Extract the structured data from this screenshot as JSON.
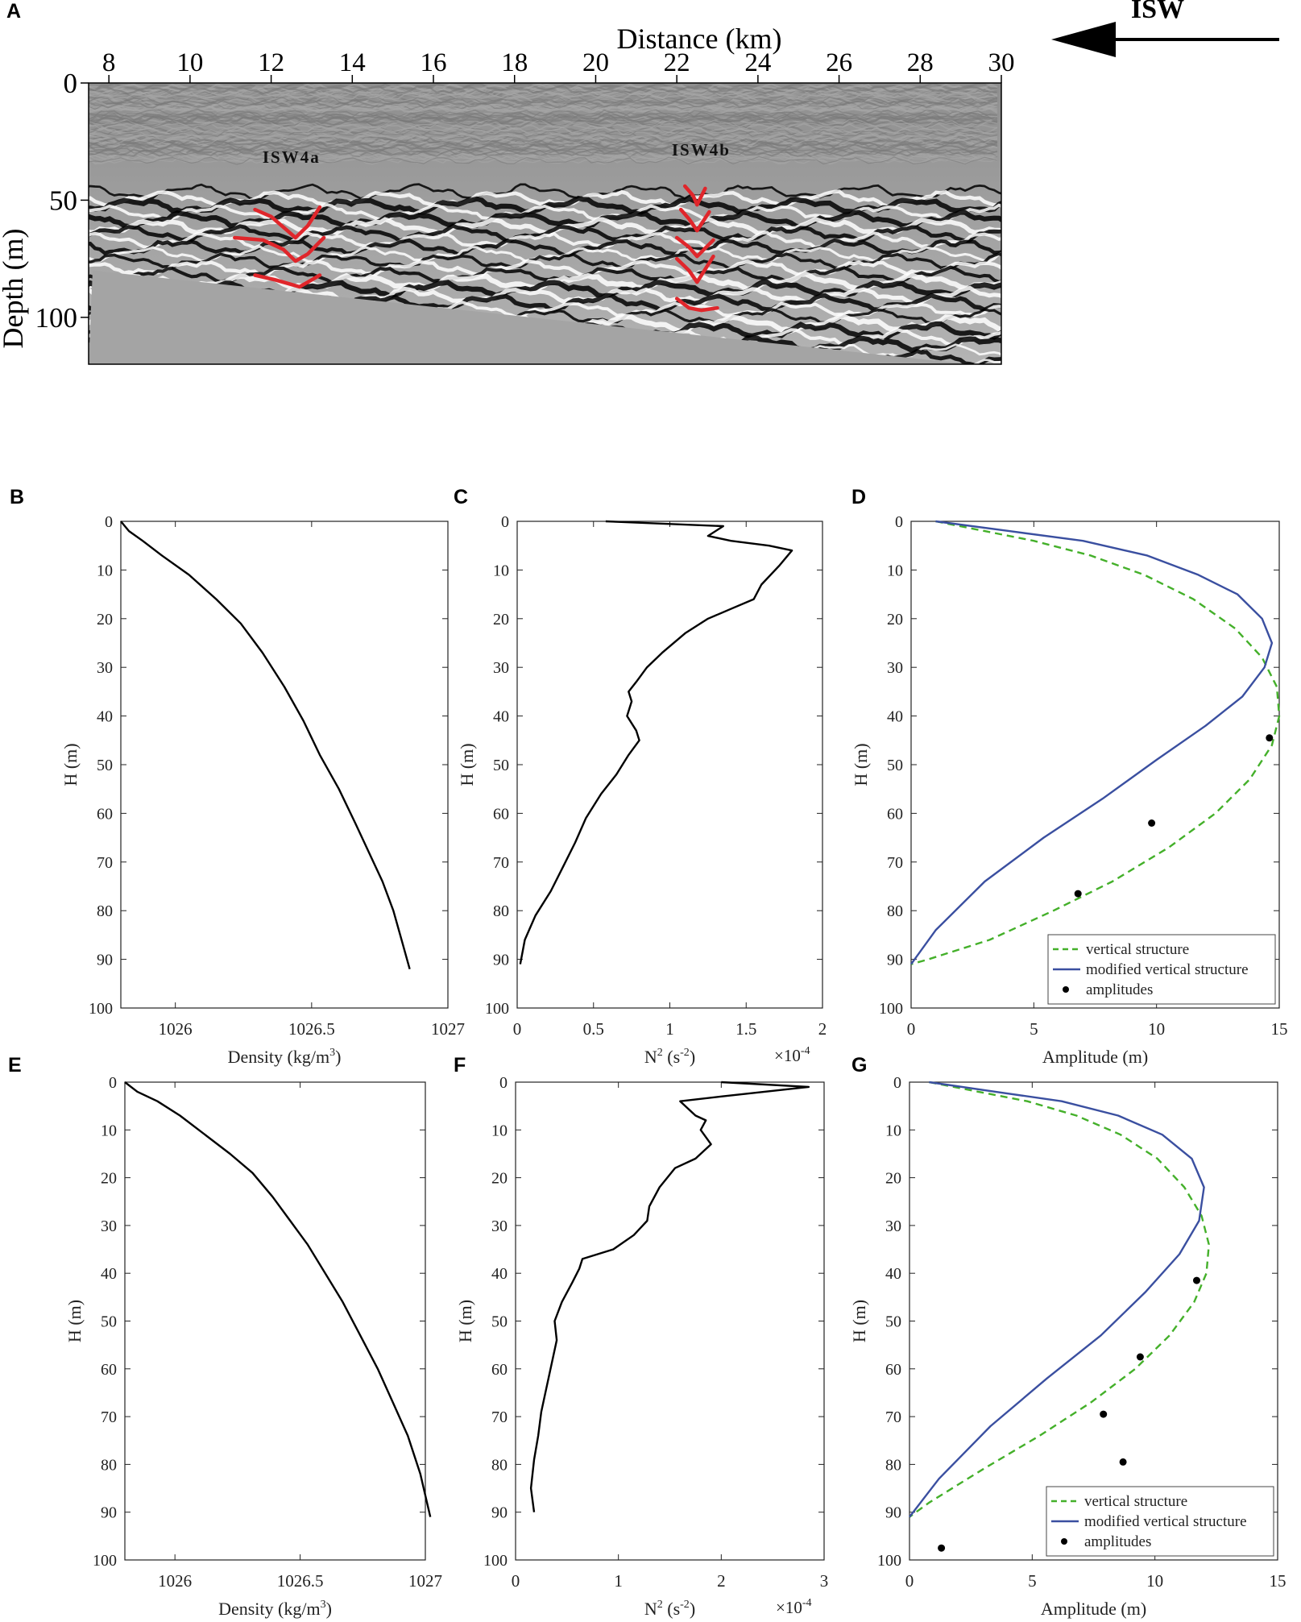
{
  "chart_data": [
    {
      "panel": "A",
      "type": "heatmap",
      "xlabel": "Distance (km)",
      "ylabel": "Depth (m)",
      "xlim": [
        7.5,
        30
      ],
      "ylim": [
        0,
        120
      ],
      "xticks": [
        8,
        10,
        12,
        14,
        16,
        18,
        20,
        22,
        24,
        26,
        28,
        30
      ],
      "yticks": [
        0,
        50,
        100
      ],
      "direction_label": "ISW",
      "direction": "left",
      "seafloor_depth": {
        "x": [
          7.6,
          29.2
        ],
        "depth": [
          80,
          120
        ]
      },
      "annotations": [
        {
          "text": "ISW4a",
          "x": 12.5,
          "depth": 34
        },
        {
          "text": "ISW4b",
          "x": 22.6,
          "depth": 31
        }
      ],
      "traced_reflectors": [
        {
          "name": "ISW4a",
          "x": [
            11.6,
            12.0,
            12.4,
            12.6,
            12.9,
            13.2
          ],
          "depth": [
            54,
            57,
            63,
            66,
            61,
            53
          ]
        },
        {
          "name": "ISW4a",
          "x": [
            11.1,
            11.8,
            12.3,
            12.6,
            12.9,
            13.3
          ],
          "depth": [
            66,
            67,
            71,
            76,
            73,
            66
          ]
        },
        {
          "name": "ISW4a",
          "x": [
            11.6,
            12.1,
            12.5,
            12.7,
            13.0,
            13.2
          ],
          "depth": [
            82,
            84,
            86,
            87,
            84,
            82
          ]
        },
        {
          "name": "ISW4b",
          "x": [
            22.2,
            22.4,
            22.5,
            22.7
          ],
          "depth": [
            44,
            48,
            52,
            45
          ]
        },
        {
          "name": "ISW4b",
          "x": [
            22.1,
            22.3,
            22.5,
            22.8
          ],
          "depth": [
            54,
            58,
            63,
            55
          ]
        },
        {
          "name": "ISW4b",
          "x": [
            22.0,
            22.3,
            22.5,
            22.9
          ],
          "depth": [
            66,
            70,
            74,
            67
          ]
        },
        {
          "name": "ISW4b",
          "x": [
            22.0,
            22.3,
            22.5,
            22.9
          ],
          "depth": [
            75,
            80,
            85,
            74
          ]
        },
        {
          "name": "ISW4b",
          "x": [
            22.0,
            22.3,
            22.6,
            23.0
          ],
          "depth": [
            92,
            96,
            97,
            96
          ]
        }
      ]
    },
    {
      "panel": "B",
      "type": "line",
      "xlabel": "Density (kg/m",
      "xlabel_sup": "3",
      "xlabel_end": ")",
      "ylabel": "H (m)",
      "xlim": [
        1025.8,
        1027
      ],
      "ylim": [
        0,
        100
      ],
      "y_reversed": true,
      "xticks": [
        1026,
        1026.5,
        1027
      ],
      "xtick_labels": [
        "1026",
        "1026.5",
        "1027"
      ],
      "yticks": [
        0,
        10,
        20,
        30,
        40,
        50,
        60,
        70,
        80,
        90,
        100
      ],
      "series": [
        {
          "x": [
            1025.8,
            1025.83,
            1025.88,
            1025.95,
            1026.05,
            1026.15,
            1026.24,
            1026.32,
            1026.4,
            1026.47,
            1026.53,
            1026.6,
            1026.66,
            1026.71,
            1026.76,
            1026.8,
            1026.83,
            1026.86
          ],
          "y": [
            0,
            2,
            4,
            7,
            11,
            16,
            21,
            27,
            34,
            41,
            48,
            55,
            62,
            68,
            74,
            80,
            86,
            92
          ]
        }
      ]
    },
    {
      "panel": "C",
      "type": "line",
      "xlabel": "N",
      "xlabel_sup": "2",
      "xlabel_mid": " (s",
      "xlabel_sup2": "-2",
      "xlabel_end": ")",
      "multiplier_base": "×10",
      "multiplier_exp": "-4",
      "ylabel": "H (m)",
      "xlim": [
        0,
        2
      ],
      "ylim": [
        0,
        100
      ],
      "y_reversed": true,
      "xticks": [
        0,
        0.5,
        1,
        1.5,
        2
      ],
      "xtick_labels": [
        "0",
        "0.5",
        "1",
        "1.5",
        "2"
      ],
      "yticks": [
        0,
        10,
        20,
        30,
        40,
        50,
        60,
        70,
        80,
        90,
        100
      ],
      "series": [
        {
          "x": [
            0.58,
            1.35,
            1.25,
            1.4,
            1.65,
            1.8,
            1.72,
            1.6,
            1.55,
            1.4,
            1.25,
            1.1,
            0.95,
            0.85,
            0.78,
            0.73,
            0.75,
            0.72,
            0.78,
            0.8,
            0.73,
            0.65,
            0.55,
            0.45,
            0.38,
            0.3,
            0.22,
            0.12,
            0.05,
            0.02
          ],
          "y": [
            0,
            1,
            3,
            4,
            5,
            6,
            9,
            13,
            16,
            18,
            20,
            23,
            27,
            30,
            33,
            35,
            37,
            40,
            43,
            45,
            48,
            52,
            56,
            61,
            66,
            71,
            76,
            81,
            86,
            91
          ]
        }
      ]
    },
    {
      "panel": "D",
      "type": "line",
      "xlabel": "Amplitude (m)",
      "ylabel": "H (m)",
      "xlim": [
        0,
        15
      ],
      "ylim": [
        0,
        100
      ],
      "y_reversed": true,
      "xticks": [
        0,
        5,
        10,
        15
      ],
      "xtick_labels": [
        "0",
        "5",
        "10",
        "15"
      ],
      "yticks": [
        0,
        10,
        20,
        30,
        40,
        50,
        60,
        70,
        80,
        90,
        100
      ],
      "legend": "bottom-right",
      "series": [
        {
          "name": "vertical structure",
          "style": "dashed",
          "color": "#44b02a",
          "x": [
            1,
            3,
            5,
            7.3,
            9.5,
            11.5,
            13.2,
            14.3,
            14.9,
            15,
            14.7,
            13.8,
            12.4,
            10.5,
            8.2,
            5.8,
            3.2,
            0.7,
            0
          ],
          "y": [
            0,
            2,
            4,
            7,
            11,
            16,
            22,
            28,
            34,
            40,
            46,
            53,
            60,
            67,
            74,
            80,
            86,
            90,
            91
          ]
        },
        {
          "name": "modified vertical structure",
          "style": "solid",
          "color": "#3a4fa0",
          "x": [
            1,
            4,
            7,
            9.6,
            11.7,
            13.3,
            14.3,
            14.7,
            14.4,
            13.5,
            12,
            10,
            7.8,
            5.4,
            3,
            1,
            0
          ],
          "y": [
            0,
            2,
            4,
            7,
            11,
            15,
            20,
            25,
            30,
            36,
            42,
            49,
            57,
            65,
            74,
            84,
            91
          ]
        },
        {
          "name": "amplitudes",
          "style": "points",
          "color": "#000000",
          "x": [
            14.6,
            9.8,
            6.8
          ],
          "y": [
            44.5,
            62,
            76.5
          ]
        }
      ]
    },
    {
      "panel": "E",
      "type": "line",
      "xlabel": "Density (kg/m",
      "xlabel_sup": "3",
      "xlabel_end": ")",
      "ylabel": "H (m)",
      "xlim": [
        1025.8,
        1027
      ],
      "ylim": [
        0,
        100
      ],
      "y_reversed": true,
      "xticks": [
        1026,
        1026.5,
        1027
      ],
      "xtick_labels": [
        "1026",
        "1026.5",
        "1027"
      ],
      "yticks": [
        0,
        10,
        20,
        30,
        40,
        50,
        60,
        70,
        80,
        90,
        100
      ],
      "series": [
        {
          "x": [
            1025.8,
            1025.85,
            1025.93,
            1026.02,
            1026.12,
            1026.22,
            1026.31,
            1026.39,
            1026.46,
            1026.53,
            1026.6,
            1026.67,
            1026.74,
            1026.81,
            1026.87,
            1026.93,
            1026.98,
            1027.02
          ],
          "y": [
            0,
            2,
            4,
            7,
            11,
            15,
            19,
            24,
            29,
            34,
            40,
            46,
            53,
            60,
            67,
            74,
            82,
            91
          ]
        }
      ]
    },
    {
      "panel": "F",
      "type": "line",
      "xlabel": "N",
      "xlabel_sup": "2",
      "xlabel_mid": " (s",
      "xlabel_sup2": "-2",
      "xlabel_end": ")",
      "multiplier_base": "×10",
      "multiplier_exp": "-4",
      "ylabel": "H (m)",
      "xlim": [
        0,
        3
      ],
      "ylim": [
        0,
        100
      ],
      "y_reversed": true,
      "xticks": [
        0,
        1,
        2,
        3
      ],
      "xtick_labels": [
        "0",
        "1",
        "2",
        "3"
      ],
      "yticks": [
        0,
        10,
        20,
        30,
        40,
        50,
        60,
        70,
        80,
        90,
        100
      ],
      "series": [
        {
          "x": [
            2.0,
            2.85,
            2.0,
            1.6,
            1.75,
            1.85,
            1.8,
            1.9,
            1.75,
            1.55,
            1.4,
            1.3,
            1.28,
            1.15,
            0.95,
            0.65,
            0.62,
            0.55,
            0.45,
            0.38,
            0.4,
            0.35,
            0.3,
            0.25,
            0.22,
            0.18,
            0.15,
            0.18
          ],
          "y": [
            0,
            1,
            3,
            4,
            7,
            8,
            10,
            13,
            16,
            18,
            22,
            26,
            29,
            32,
            35,
            37,
            39,
            42,
            46,
            50,
            54,
            59,
            64,
            69,
            74,
            79,
            85,
            90
          ]
        }
      ]
    },
    {
      "panel": "G",
      "type": "line",
      "xlabel": "Amplitude (m)",
      "ylabel": "H (m)",
      "xlim": [
        0,
        15
      ],
      "ylim": [
        0,
        100
      ],
      "y_reversed": true,
      "xticks": [
        0,
        5,
        10,
        15
      ],
      "xtick_labels": [
        "0",
        "5",
        "10",
        "15"
      ],
      "yticks": [
        0,
        10,
        20,
        30,
        40,
        50,
        60,
        70,
        80,
        90,
        100
      ],
      "legend": "bottom-right",
      "series": [
        {
          "name": "vertical structure",
          "style": "dashed",
          "color": "#44b02a",
          "x": [
            0.8,
            2.8,
            4.8,
            6.8,
            8.6,
            10.1,
            11.2,
            11.9,
            12.2,
            12.1,
            11.6,
            10.6,
            9.2,
            7.4,
            5.3,
            3.0,
            0.8,
            0
          ],
          "y": [
            0,
            2,
            4,
            7,
            11,
            16,
            22,
            28,
            34,
            40,
            46,
            53,
            60,
            67,
            74,
            81,
            88,
            91
          ]
        },
        {
          "name": "modified vertical structure",
          "style": "solid",
          "color": "#3a4fa0",
          "x": [
            0.8,
            3.5,
            6.2,
            8.5,
            10.3,
            11.5,
            12.0,
            11.8,
            11.0,
            9.6,
            7.8,
            5.6,
            3.3,
            1.2,
            0
          ],
          "y": [
            0,
            2,
            4,
            7,
            11,
            16,
            22,
            29,
            36,
            44,
            53,
            62,
            72,
            83,
            91
          ]
        },
        {
          "name": "amplitudes",
          "style": "points",
          "color": "#000000",
          "x": [
            11.7,
            9.4,
            7.9,
            8.7,
            1.3
          ],
          "y": [
            41.5,
            57.5,
            69.5,
            79.5,
            97.5
          ]
        }
      ]
    }
  ],
  "panel_labels": [
    "A",
    "B",
    "C",
    "D",
    "E",
    "F",
    "G"
  ]
}
